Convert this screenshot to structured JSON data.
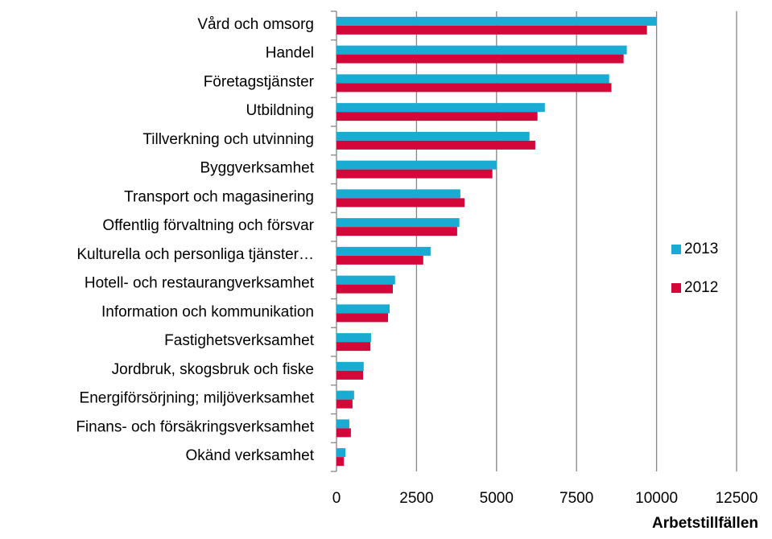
{
  "chart_data": {
    "type": "barh",
    "x_label": "Arbetstillfällen",
    "categories": [
      "Vård och omsorg",
      "Handel",
      "Företagstjänster",
      "Utbildning",
      "Tillverkning och utvinning",
      "Byggverksamhet",
      "Transport och magasinering",
      "Offentlig förvaltning och försvar",
      "Kulturella och personliga tjänster…",
      "Hotell- och restaurangverksamhet",
      "Information och kommunikation",
      "Fastighetsverksamhet",
      "Jordbruk, skogsbruk och fiske",
      "Energiförsörjning; miljöverksamhet",
      "Finans- och försäkringsverksamhet",
      "Okänd verksamhet"
    ],
    "series": [
      {
        "name": "2013",
        "color": "#1aabd3",
        "values": [
          10000,
          9070,
          8520,
          6510,
          6030,
          5000,
          3870,
          3840,
          2940,
          1830,
          1660,
          1080,
          850,
          550,
          400,
          280
        ]
      },
      {
        "name": "2012",
        "color": "#d3073a",
        "values": [
          9700,
          8970,
          8590,
          6280,
          6210,
          4870,
          4000,
          3770,
          2710,
          1760,
          1610,
          1060,
          830,
          500,
          450,
          230
        ]
      }
    ],
    "xlim": [
      0,
      12500
    ],
    "xticks": [
      0,
      2500,
      5000,
      7500,
      10000,
      12500
    ],
    "grid": true,
    "legend": "right"
  }
}
